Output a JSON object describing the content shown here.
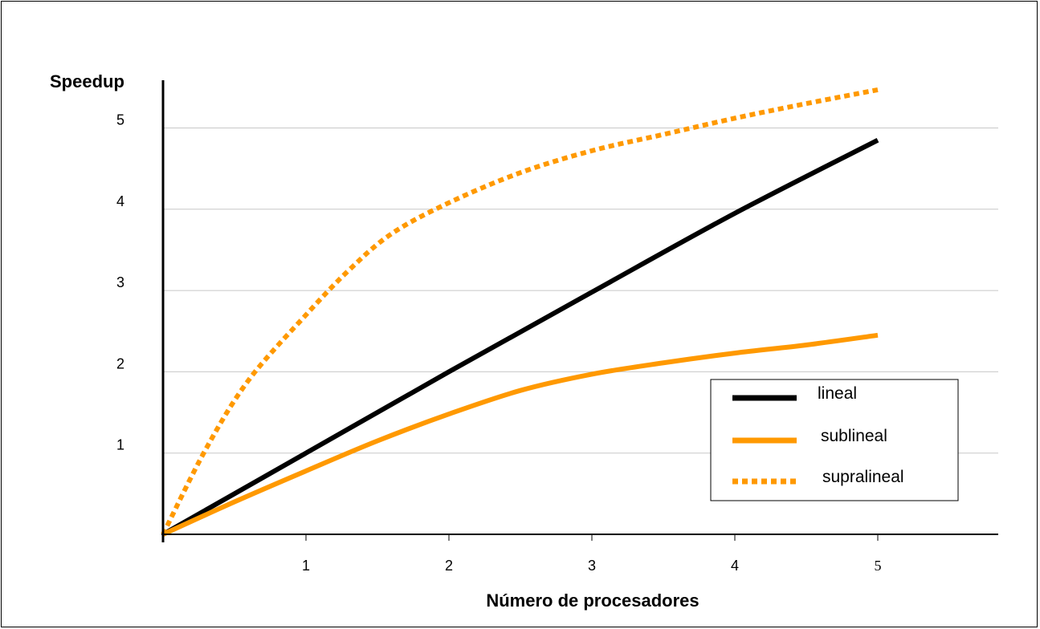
{
  "chart_data": {
    "type": "line",
    "title": "",
    "xlabel": "Número de procesadores",
    "ylabel": "Speedup",
    "x_ticks": [
      "1",
      "2",
      "3",
      "4",
      "5"
    ],
    "y_ticks": [
      "1",
      "2",
      "3",
      "4",
      "5"
    ],
    "xlim": [
      0,
      5.9
    ],
    "ylim": [
      0,
      5.7
    ],
    "grid": "horizontal",
    "legend_position": "bottom-right",
    "series": [
      {
        "name": "lineal",
        "color": "#000000",
        "style": "solid",
        "x": [
          0,
          1,
          2,
          3,
          4,
          5
        ],
        "y": [
          0,
          1,
          2,
          2.98,
          3.95,
          4.85
        ]
      },
      {
        "name": "sublineal",
        "color": "#FF9900",
        "style": "solid",
        "x": [
          0,
          0.5,
          1,
          1.5,
          2,
          2.5,
          3,
          3.5,
          4,
          4.5,
          5
        ],
        "y": [
          0,
          0.4,
          0.78,
          1.15,
          1.48,
          1.77,
          1.97,
          2.11,
          2.23,
          2.33,
          2.45
        ]
      },
      {
        "name": "supralineal",
        "color": "#FF9900",
        "style": "dotted",
        "x": [
          0,
          0.3,
          0.6,
          1,
          1.3,
          1.6,
          2,
          2.5,
          3,
          3.5,
          4,
          4.5,
          5
        ],
        "y": [
          0,
          1.05,
          1.9,
          2.7,
          3.25,
          3.7,
          4.08,
          4.45,
          4.72,
          4.92,
          5.12,
          5.3,
          5.47
        ]
      }
    ]
  }
}
